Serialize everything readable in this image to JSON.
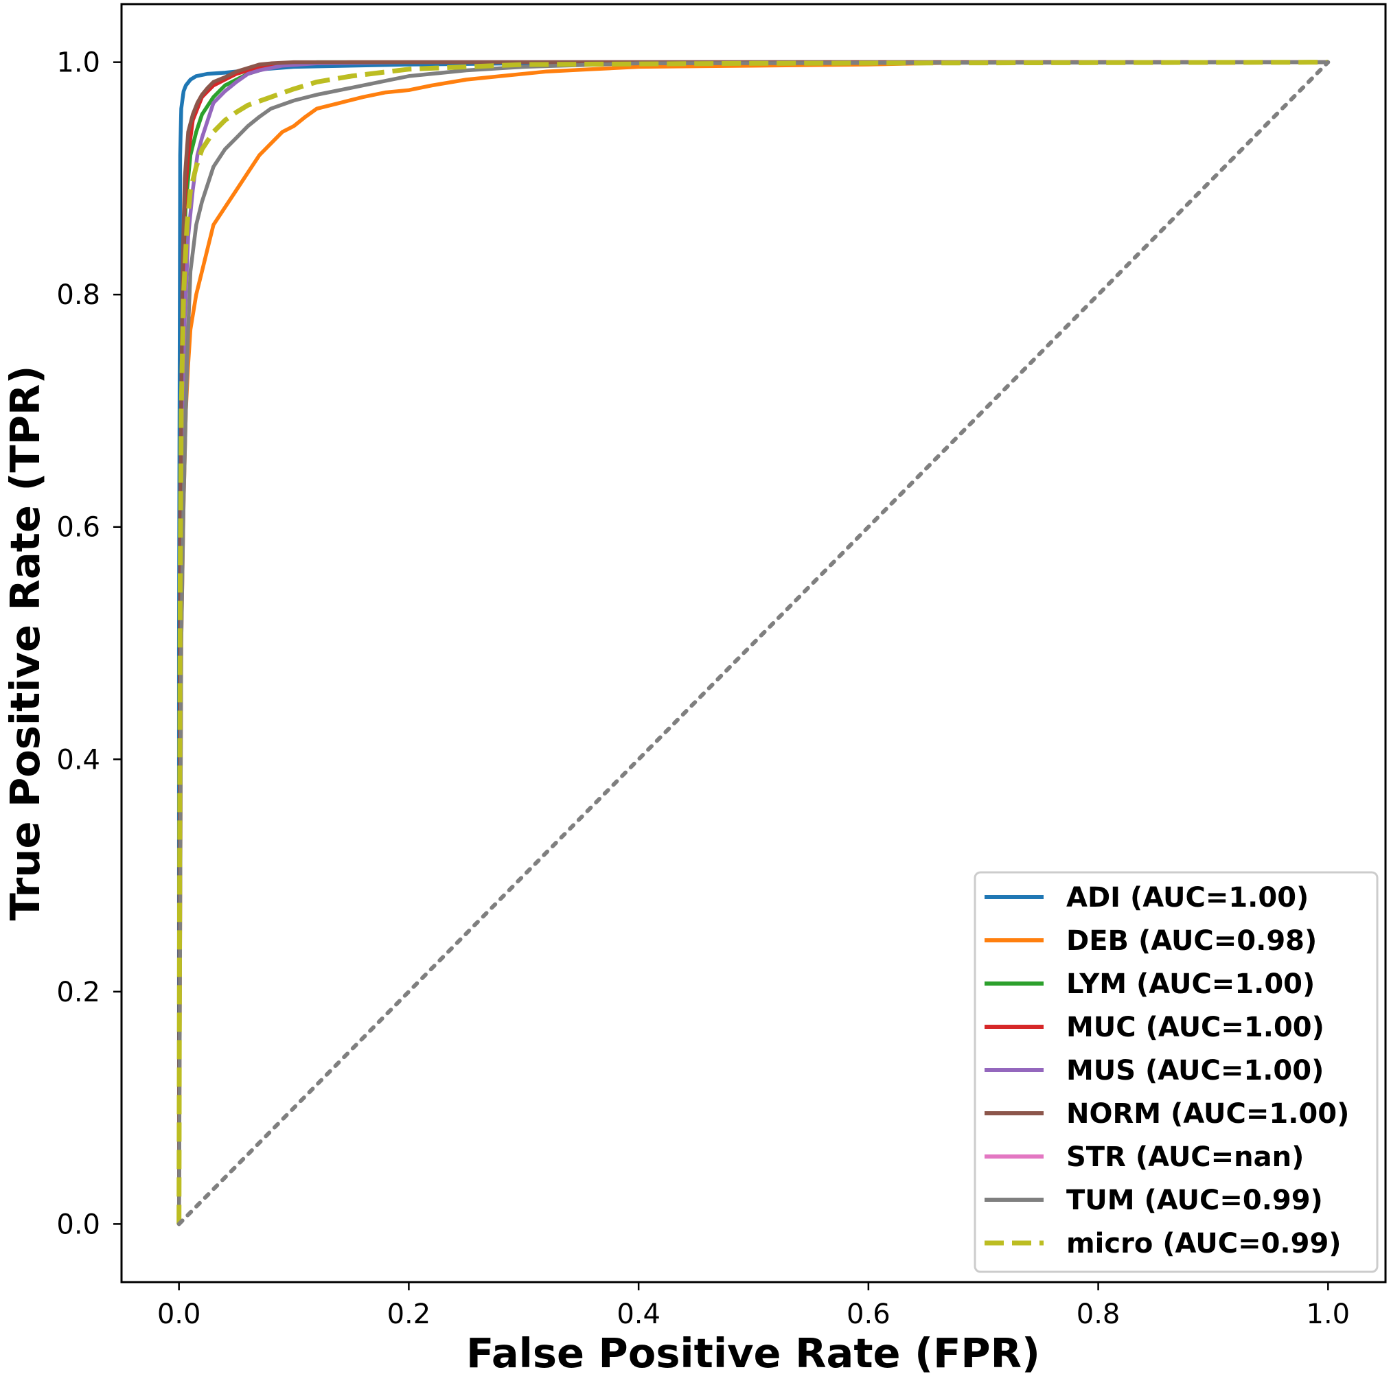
{
  "chart_data": {
    "type": "line",
    "title": "",
    "xlabel": "False Positive Rate (FPR)",
    "ylabel": "True Positive Rate (TPR)",
    "xlim": [
      -0.05,
      1.05
    ],
    "ylim": [
      -0.05,
      1.05
    ],
    "xticks": [
      0.0,
      0.2,
      0.4,
      0.6,
      0.8,
      1.0
    ],
    "xtick_labels": [
      "0.0",
      "0.2",
      "0.4",
      "0.6",
      "0.8",
      "1.0"
    ],
    "yticks": [
      0.0,
      0.2,
      0.4,
      0.6,
      0.8,
      1.0
    ],
    "ytick_labels": [
      "0.0",
      "0.2",
      "0.4",
      "0.6",
      "0.8",
      "1.0"
    ],
    "grid": false,
    "legend_position": "lower-right",
    "series": [
      {
        "name": "ADI (AUC=1.00)",
        "color": "#1f77b4",
        "style": "solid",
        "x": [
          0,
          0,
          0.001,
          0.002,
          0.004,
          0.006,
          0.01,
          0.015,
          0.025,
          0.04,
          0.06,
          0.1,
          0.2,
          0.3,
          0.5,
          1.0
        ],
        "y": [
          0,
          0.5,
          0.92,
          0.96,
          0.975,
          0.98,
          0.985,
          0.988,
          0.99,
          0.991,
          0.993,
          0.996,
          0.998,
          0.999,
          1.0,
          1.0
        ]
      },
      {
        "name": "DEB (AUC=0.98)",
        "color": "#ff7f0e",
        "style": "solid",
        "x": [
          0,
          0.002,
          0.004,
          0.006,
          0.008,
          0.01,
          0.015,
          0.02,
          0.025,
          0.03,
          0.04,
          0.05,
          0.06,
          0.07,
          0.08,
          0.09,
          0.1,
          0.11,
          0.12,
          0.14,
          0.16,
          0.18,
          0.2,
          0.22,
          0.25,
          0.28,
          0.32,
          0.36,
          0.4,
          0.5,
          0.6,
          0.7,
          1.0
        ],
        "y": [
          0,
          0.5,
          0.62,
          0.7,
          0.74,
          0.77,
          0.8,
          0.82,
          0.84,
          0.86,
          0.875,
          0.89,
          0.905,
          0.92,
          0.93,
          0.94,
          0.945,
          0.953,
          0.96,
          0.965,
          0.97,
          0.974,
          0.976,
          0.98,
          0.985,
          0.988,
          0.992,
          0.994,
          0.996,
          0.997,
          0.998,
          1.0,
          1.0
        ]
      },
      {
        "name": "LYM (AUC=1.00)",
        "color": "#2ca02c",
        "style": "solid",
        "x": [
          0,
          0.001,
          0.003,
          0.006,
          0.01,
          0.015,
          0.02,
          0.03,
          0.04,
          0.06,
          0.08,
          0.1,
          0.12,
          0.2,
          1.0
        ],
        "y": [
          0,
          0.6,
          0.8,
          0.88,
          0.92,
          0.94,
          0.955,
          0.97,
          0.98,
          0.99,
          0.996,
          0.998,
          1.0,
          1.0,
          1.0
        ]
      },
      {
        "name": "MUC (AUC=1.00)",
        "color": "#d62728",
        "style": "solid",
        "x": [
          0,
          0.001,
          0.003,
          0.005,
          0.008,
          0.012,
          0.016,
          0.02,
          0.025,
          0.03,
          0.04,
          0.05,
          0.06,
          0.08,
          0.1,
          0.15,
          1.0
        ],
        "y": [
          0,
          0.6,
          0.8,
          0.88,
          0.92,
          0.95,
          0.96,
          0.97,
          0.975,
          0.98,
          0.985,
          0.99,
          0.993,
          0.997,
          0.999,
          1.0,
          1.0
        ]
      },
      {
        "name": "MUS (AUC=1.00)",
        "color": "#9467bd",
        "style": "solid",
        "x": [
          0,
          0.002,
          0.005,
          0.008,
          0.012,
          0.016,
          0.02,
          0.025,
          0.03,
          0.04,
          0.05,
          0.06,
          0.07,
          0.09,
          0.12,
          0.2,
          1.0
        ],
        "y": [
          0,
          0.6,
          0.78,
          0.85,
          0.89,
          0.92,
          0.935,
          0.95,
          0.965,
          0.975,
          0.983,
          0.99,
          0.993,
          0.997,
          0.999,
          1.0,
          1.0
        ]
      },
      {
        "name": "NORM (AUC=1.00)",
        "color": "#8c564b",
        "style": "solid",
        "x": [
          0,
          0.001,
          0.003,
          0.005,
          0.008,
          0.012,
          0.016,
          0.02,
          0.025,
          0.03,
          0.04,
          0.05,
          0.06,
          0.07,
          0.08,
          0.1,
          0.15,
          1.0
        ],
        "y": [
          0,
          0.6,
          0.82,
          0.9,
          0.94,
          0.955,
          0.965,
          0.972,
          0.978,
          0.983,
          0.987,
          0.992,
          0.995,
          0.998,
          0.999,
          1.0,
          1.0,
          1.0
        ]
      },
      {
        "name": "STR (AUC=nan)",
        "color": "#e377c2",
        "style": "solid",
        "x": [],
        "y": []
      },
      {
        "name": "TUM (AUC=0.99)",
        "color": "#7f7f7f",
        "style": "solid",
        "x": [
          0,
          0.002,
          0.004,
          0.006,
          0.008,
          0.01,
          0.015,
          0.02,
          0.03,
          0.04,
          0.05,
          0.06,
          0.07,
          0.08,
          0.1,
          0.12,
          0.15,
          0.18,
          0.2,
          0.25,
          0.3,
          0.4,
          1.0
        ],
        "y": [
          0,
          0.5,
          0.62,
          0.7,
          0.77,
          0.82,
          0.86,
          0.88,
          0.91,
          0.925,
          0.935,
          0.945,
          0.953,
          0.96,
          0.967,
          0.972,
          0.978,
          0.984,
          0.988,
          0.993,
          0.996,
          0.999,
          1.0
        ]
      },
      {
        "name": "micro (AUC=0.99)",
        "color": "#bcbd22",
        "style": "dashed",
        "x": [
          0,
          0.001,
          0.002,
          0.004,
          0.007,
          0.01,
          0.015,
          0.02,
          0.03,
          0.04,
          0.05,
          0.06,
          0.08,
          0.1,
          0.12,
          0.15,
          0.2,
          0.3,
          0.5,
          1.0
        ],
        "y": [
          0,
          0.55,
          0.7,
          0.8,
          0.86,
          0.89,
          0.91,
          0.925,
          0.94,
          0.95,
          0.957,
          0.963,
          0.97,
          0.977,
          0.983,
          0.988,
          0.994,
          0.998,
          0.999,
          1.0
        ]
      }
    ],
    "reference_line": {
      "x": [
        0,
        1
      ],
      "y": [
        0,
        1
      ],
      "color": "#7f7f7f",
      "style": "dotted"
    }
  }
}
